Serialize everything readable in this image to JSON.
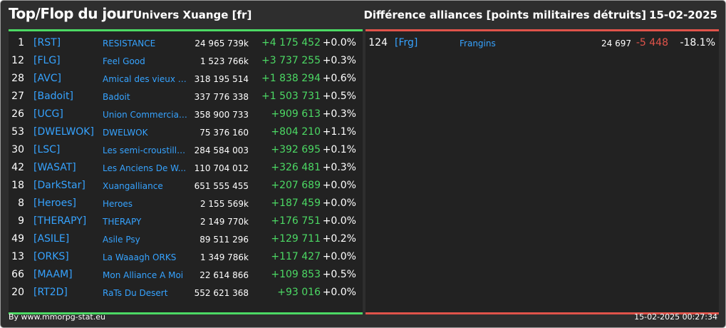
{
  "header": {
    "title": "Top/Flop du jour",
    "subtitle": "Univers Xuange [fr]",
    "right_title": "Différence alliances [points militaires détruits]",
    "date": "15-02-2025"
  },
  "top": [
    {
      "rank": "1",
      "tag": "[RST]",
      "name": "RESISTANCE",
      "points": "24 965 739k",
      "diff": "+4 175 452",
      "pct": "+0.0%"
    },
    {
      "rank": "12",
      "tag": "[FLG]",
      "name": "Feel Good",
      "points": "1 523 766k",
      "diff": "+3 737 255",
      "pct": "+0.3%"
    },
    {
      "rank": "28",
      "tag": "[AVC]",
      "name": "Amical des vieux con",
      "points": "318 195 514",
      "diff": "+1 838 294",
      "pct": "+0.6%"
    },
    {
      "rank": "27",
      "tag": "[Badoit]",
      "name": "Badoit",
      "points": "337 776 338",
      "diff": "+1 503 731",
      "pct": "+0.5%"
    },
    {
      "rank": "26",
      "tag": "[UCG]",
      "name": "Union Commerciale...",
      "points": "358 900 733",
      "diff": "+909 613",
      "pct": "+0.3%"
    },
    {
      "rank": "53",
      "tag": "[DWELWOK]",
      "name": "DWELWOK",
      "points": "75 376 160",
      "diff": "+804 210",
      "pct": "+1.1%"
    },
    {
      "rank": "30",
      "tag": "[LSC]",
      "name": "Les semi-croustilla...",
      "points": "284 584 003",
      "diff": "+392 695",
      "pct": "+0.1%"
    },
    {
      "rank": "42",
      "tag": "[WASAT]",
      "name": "Les Anciens De W...",
      "points": "110 704 012",
      "diff": "+326 481",
      "pct": "+0.3%"
    },
    {
      "rank": "18",
      "tag": "[DarkStar]",
      "name": "Xuangalliance",
      "points": "651 555 455",
      "diff": "+207 689",
      "pct": "+0.0%"
    },
    {
      "rank": "8",
      "tag": "[Heroes]",
      "name": "Heroes",
      "points": "2 155 569k",
      "diff": "+187 459",
      "pct": "+0.0%"
    },
    {
      "rank": "9",
      "tag": "[THERAPY]",
      "name": "THERAPY",
      "points": "2 149 770k",
      "diff": "+176 751",
      "pct": "+0.0%"
    },
    {
      "rank": "49",
      "tag": "[ASILE]",
      "name": "Asile Psy",
      "points": "89 511 296",
      "diff": "+129 711",
      "pct": "+0.2%"
    },
    {
      "rank": "13",
      "tag": "[ORKS]",
      "name": "La Waaagh ORKS",
      "points": "1 349 786k",
      "diff": "+117 427",
      "pct": "+0.0%"
    },
    {
      "rank": "66",
      "tag": "[MAAM]",
      "name": "Mon Alliance A Moi",
      "points": "22 614 866",
      "diff": "+109 853",
      "pct": "+0.5%"
    },
    {
      "rank": "20",
      "tag": "[RT2D]",
      "name": "RaTs Du Desert",
      "points": "552 621 368",
      "diff": "+93 016",
      "pct": "+0.0%"
    }
  ],
  "flop": [
    {
      "rank": "124",
      "tag": "[Frg]",
      "name": "Frangins",
      "points": "24 697",
      "diff": "-5 448",
      "pct": "-18.1%"
    }
  ],
  "footer": {
    "source": "By www.mmorpg-stat.eu",
    "timestamp": "15-02-2025 00:27:34"
  },
  "colors": {
    "positive": "#4cd964",
    "negative": "#e0534a",
    "link": "#36a3ff",
    "background": "#2e2e2e",
    "panel": "#222222"
  }
}
